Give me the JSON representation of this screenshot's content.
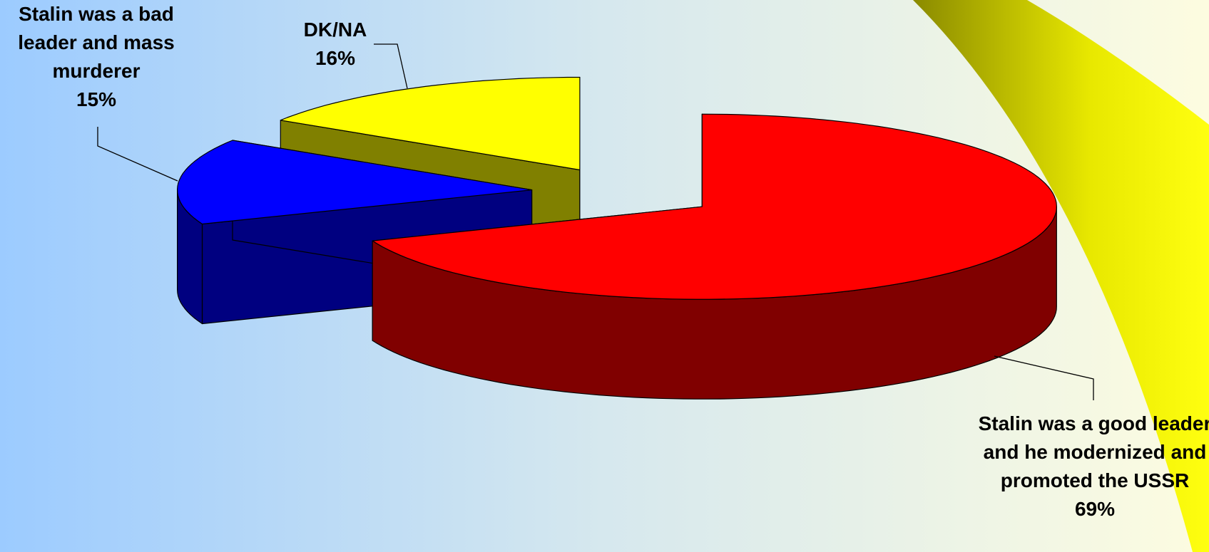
{
  "chart_data": {
    "type": "pie",
    "categories": [
      "Stalin was a good leader and he modernized and promoted the USSR",
      "Stalin was a bad leader and mass murderer",
      "DK/NA"
    ],
    "values": [
      69,
      15,
      16
    ],
    "value_labels": [
      "69%",
      "15%",
      "16%"
    ],
    "colors": [
      "#ff0000",
      "#0000ff",
      "#ffff00"
    ]
  }
}
